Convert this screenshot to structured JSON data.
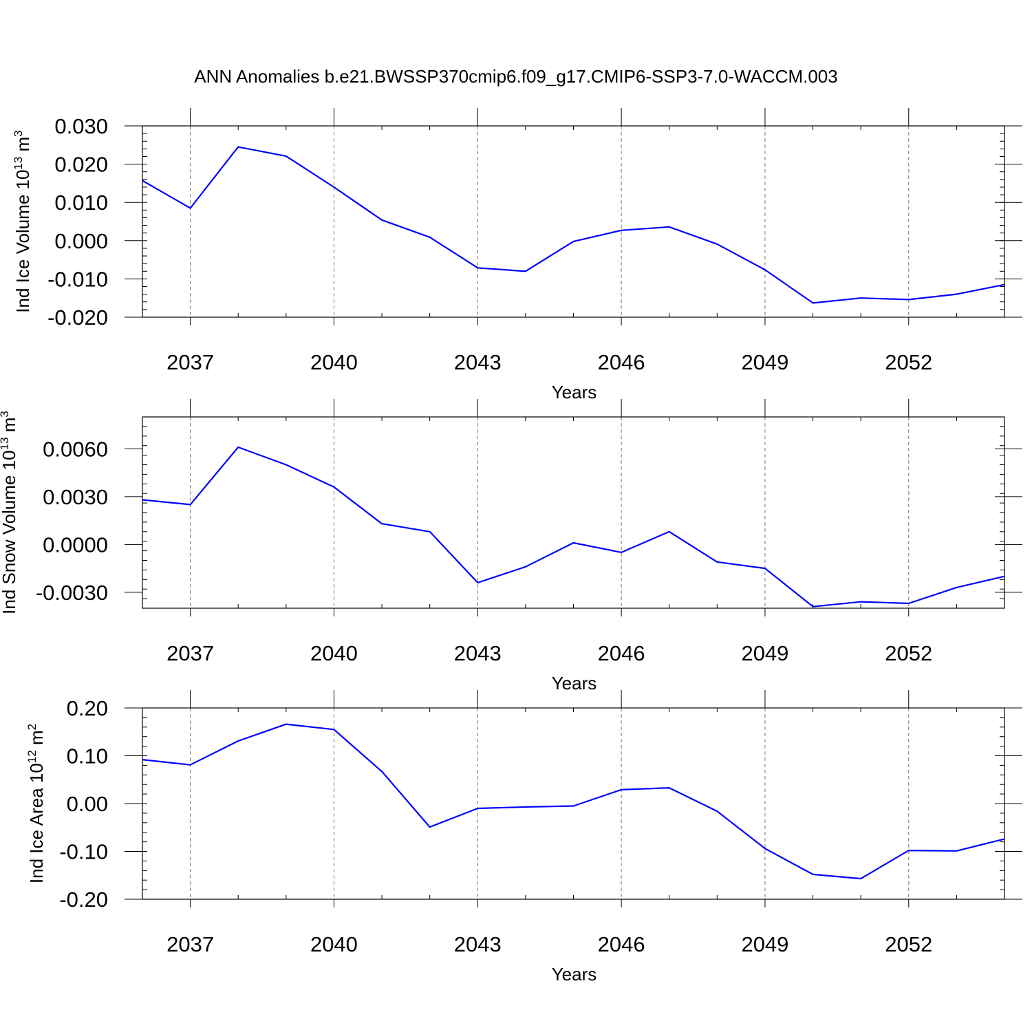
{
  "title": "ANN Anomalies b.e21.BWSSP370cmip6.f09_g17.CMIP6-SSP3-7.0-WACCM.003",
  "colors": {
    "line": "#0000ff",
    "axis": "#000000",
    "grid": "#777777"
  },
  "chart_data": [
    {
      "type": "line",
      "ylabel": {
        "text": "Ind Ice Volume 10",
        "sup": "13",
        "unit": "m",
        "unit_sup": "3"
      },
      "xlabel": "Years",
      "xlim": [
        2036,
        2054
      ],
      "ylim": [
        -0.02,
        0.03
      ],
      "yticks": [
        -0.02,
        -0.01,
        0.0,
        0.01,
        0.02,
        0.03
      ],
      "ytick_labels": [
        "-0.020",
        "-0.010",
        "0.000",
        "0.010",
        "0.020",
        "0.030"
      ],
      "yminor_step": 0.002,
      "xticks": [
        2037,
        2040,
        2043,
        2046,
        2049,
        2052
      ],
      "xtick_labels": [
        "2037",
        "2040",
        "2043",
        "2046",
        "2049",
        "2052"
      ],
      "grid": "vertical-dashed",
      "series": [
        {
          "name": "Ind Ice Volume",
          "x": [
            2036,
            2037,
            2038,
            2039,
            2040,
            2041,
            2042,
            2043,
            2044,
            2045,
            2046,
            2047,
            2048,
            2049,
            2050,
            2051,
            2052,
            2053,
            2054
          ],
          "values": [
            0.0157,
            0.0085,
            0.0245,
            0.0221,
            0.014,
            0.0054,
            0.0009,
            -0.0071,
            -0.008,
            -0.0002,
            0.0027,
            0.0036,
            -0.0009,
            -0.0076,
            -0.0163,
            -0.015,
            -0.0154,
            -0.014,
            -0.0115
          ]
        }
      ]
    },
    {
      "type": "line",
      "ylabel": {
        "text": "Ind Snow Volume 10",
        "sup": "13",
        "unit": "m",
        "unit_sup": "3"
      },
      "xlabel": "Years",
      "xlim": [
        2036,
        2054
      ],
      "ylim": [
        -0.004,
        0.008
      ],
      "yticks": [
        -0.003,
        0.0,
        0.003,
        0.006
      ],
      "ytick_labels": [
        "-0.0030",
        "0.0000",
        "0.0030",
        "0.0060"
      ],
      "yminor_step": 0.0006,
      "xticks": [
        2037,
        2040,
        2043,
        2046,
        2049,
        2052
      ],
      "xtick_labels": [
        "2037",
        "2040",
        "2043",
        "2046",
        "2049",
        "2052"
      ],
      "grid": "vertical-dashed",
      "series": [
        {
          "name": "Ind Snow Volume",
          "x": [
            2036,
            2037,
            2038,
            2039,
            2040,
            2041,
            2042,
            2043,
            2044,
            2045,
            2046,
            2047,
            2048,
            2049,
            2050,
            2051,
            2052,
            2053,
            2054
          ],
          "values": [
            0.0028,
            0.0025,
            0.0061,
            0.005,
            0.0036,
            0.0013,
            0.0008,
            -0.0024,
            -0.0014,
            0.0001,
            -0.0005,
            0.0008,
            -0.0011,
            -0.0015,
            -0.0039,
            -0.0036,
            -0.0037,
            -0.0027,
            -0.002
          ]
        }
      ]
    },
    {
      "type": "line",
      "ylabel": {
        "text": "Ind Ice Area 10",
        "sup": "12",
        "unit": "m",
        "unit_sup": "2"
      },
      "xlabel": "Years",
      "xlim": [
        2036,
        2054
      ],
      "ylim": [
        -0.2,
        0.2
      ],
      "yticks": [
        -0.2,
        -0.1,
        0.0,
        0.1,
        0.2
      ],
      "ytick_labels": [
        "-0.20",
        "-0.10",
        "0.00",
        "0.10",
        "0.20"
      ],
      "yminor_step": 0.02,
      "xticks": [
        2037,
        2040,
        2043,
        2046,
        2049,
        2052
      ],
      "xtick_labels": [
        "2037",
        "2040",
        "2043",
        "2046",
        "2049",
        "2052"
      ],
      "grid": "vertical-dashed",
      "series": [
        {
          "name": "Ind Ice Area",
          "x": [
            2036,
            2037,
            2038,
            2039,
            2040,
            2041,
            2042,
            2043,
            2044,
            2045,
            2046,
            2047,
            2048,
            2049,
            2050,
            2051,
            2052,
            2053,
            2054
          ],
          "values": [
            0.092,
            0.081,
            0.131,
            0.166,
            0.155,
            0.067,
            -0.049,
            -0.01,
            -0.007,
            -0.005,
            0.029,
            0.033,
            -0.016,
            -0.094,
            -0.148,
            -0.157,
            -0.098,
            -0.099,
            -0.074
          ]
        }
      ]
    }
  ]
}
